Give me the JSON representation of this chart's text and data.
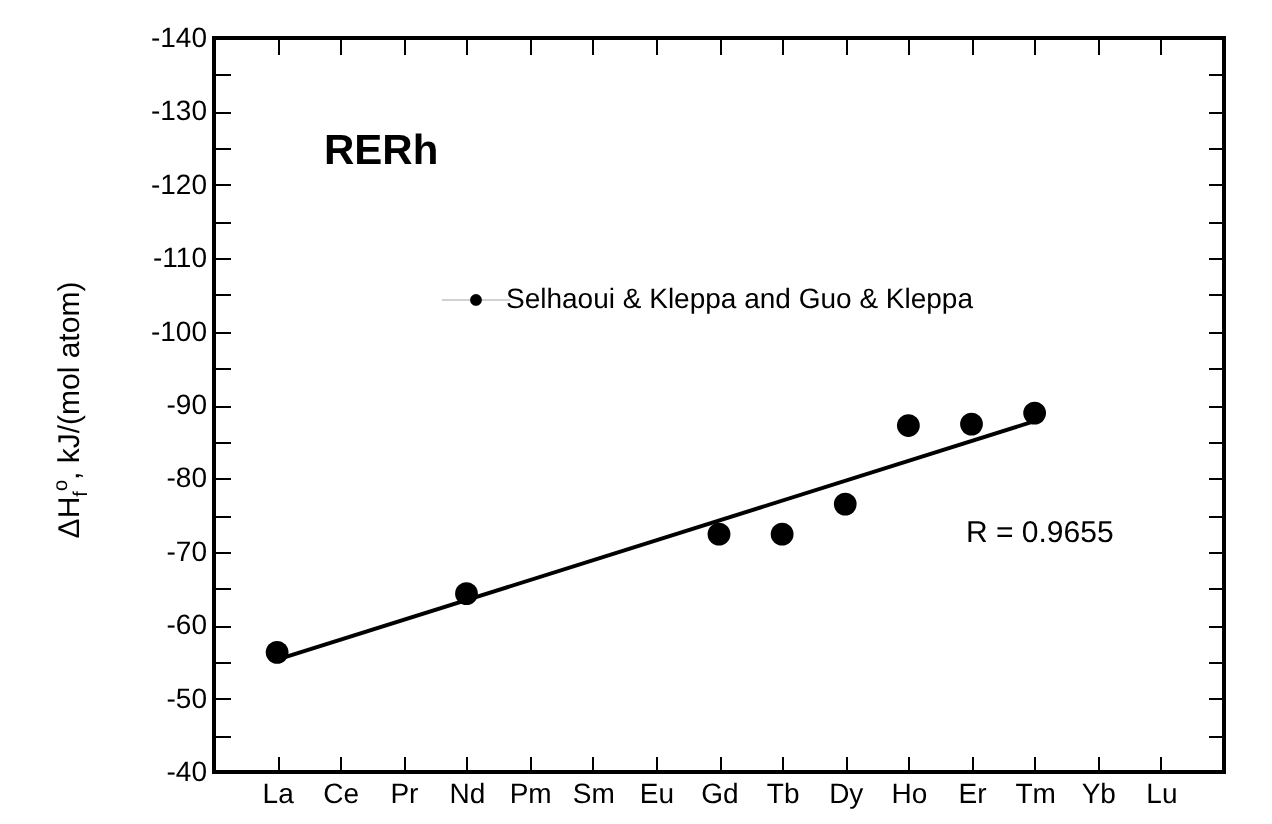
{
  "chart_data": {
    "type": "scatter",
    "title": "RERh",
    "ylabel": "ΔH$_{f}$$^{o}$, kJ/(mol atom)",
    "categories": [
      "La",
      "Ce",
      "Pr",
      "Nd",
      "Pm",
      "Sm",
      "Eu",
      "Gd",
      "Tb",
      "Dy",
      "Ho",
      "Er",
      "Tm",
      "Yb",
      "Lu"
    ],
    "series": [
      {
        "name": "Selhaoui & Kleppa and Guo & Kleppa",
        "color": "#000000",
        "values": [
          -56.3,
          null,
          null,
          -64.3,
          null,
          null,
          null,
          -72.4,
          -72.4,
          -76.5,
          -87.2,
          -87.4,
          -88.9,
          null,
          null
        ]
      },
      {
        "type": "line",
        "color": "#000000",
        "x": [
          "La",
          "Tm"
        ],
        "values": [
          -55.3,
          -87.8
        ],
        "marker": "none"
      }
    ],
    "ylim": [
      -40,
      -140
    ],
    "yticks": [
      -140,
      {
        "value": -135,
        "label": null
      },
      -130,
      {
        "value": -125,
        "label": null
      },
      -120,
      {
        "value": -115,
        "label": null
      },
      -110,
      {
        "value": -105,
        "label": null
      },
      -100,
      {
        "value": -95,
        "label": null
      },
      -90,
      {
        "value": -85,
        "label": null
      },
      -80,
      {
        "value": -75,
        "label": null
      },
      -70,
      {
        "value": -65,
        "label": null
      },
      -60,
      {
        "value": -55,
        "label": null
      },
      -50,
      {
        "value": -45,
        "label": null
      },
      -40
    ],
    "annotations": [
      "R = 0.9655"
    ],
    "legend": "top left",
    "grid": false,
    "marker": "circle"
  }
}
